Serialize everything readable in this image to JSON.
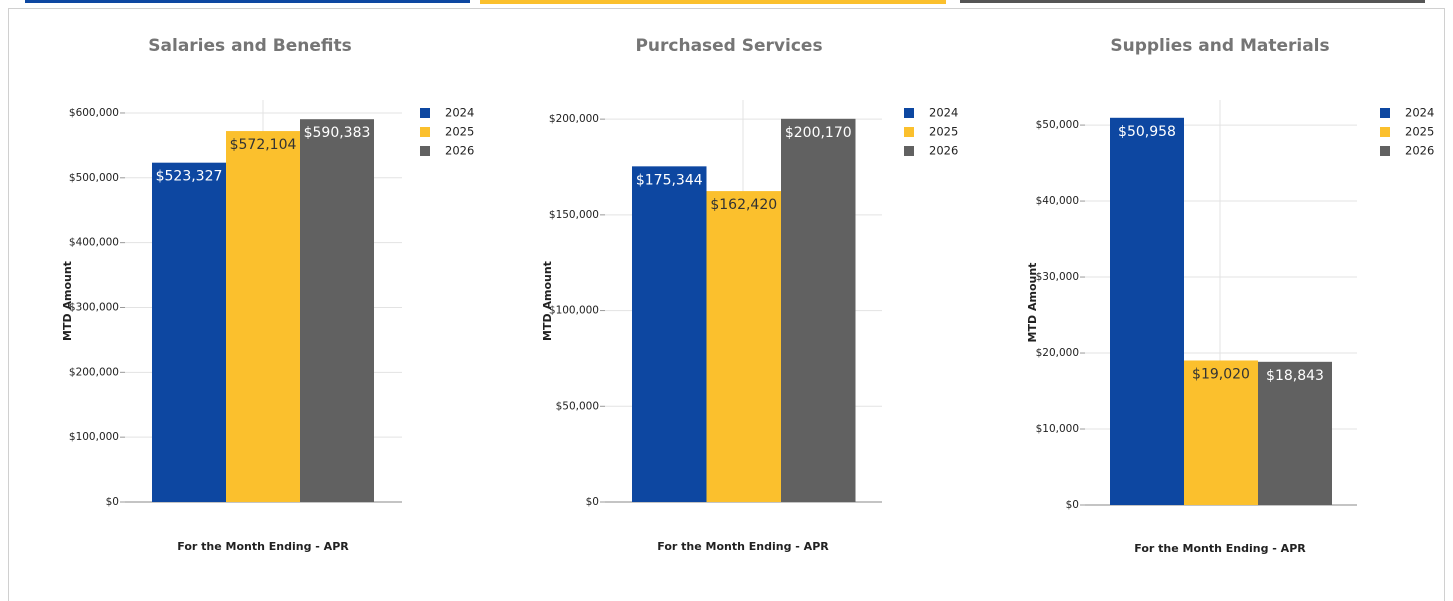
{
  "chart_data": [
    {
      "type": "bar",
      "title": "Salaries and Benefits",
      "y_label": "MTD Amount",
      "x_label": "For the Month Ending - APR",
      "categories": [
        null
      ],
      "series": [
        {
          "name": "2024",
          "color": "#0d47a1",
          "values": [
            523327
          ],
          "value_labels": [
            "$523,327"
          ]
        },
        {
          "name": "2025",
          "color": "#fbc02d",
          "values": [
            572104
          ],
          "value_labels": [
            "$572,104"
          ]
        },
        {
          "name": "2026",
          "color": "#616161",
          "values": [
            590383
          ],
          "value_labels": [
            "$590,383"
          ]
        }
      ],
      "ylim": [
        0,
        620000
      ],
      "yticks": [
        {
          "value": 0,
          "label": "$0"
        },
        {
          "value": 100000,
          "label": "$100,000"
        },
        {
          "value": 200000,
          "label": "$200,000"
        },
        {
          "value": 300000,
          "label": "$300,000"
        },
        {
          "value": 400000,
          "label": "$400,000"
        },
        {
          "value": 500000,
          "label": "$500,000"
        },
        {
          "value": 600000,
          "label": "$600,000"
        }
      ],
      "grid": true,
      "legend": "right"
    },
    {
      "type": "bar",
      "title": "Purchased Services",
      "y_label": "MTD Amount",
      "x_label": "For the Month Ending - APR",
      "categories": [
        null
      ],
      "series": [
        {
          "name": "2024",
          "color": "#0d47a1",
          "values": [
            175344
          ],
          "value_labels": [
            "$175,344"
          ]
        },
        {
          "name": "2025",
          "color": "#fbc02d",
          "values": [
            162420
          ],
          "value_labels": [
            "$162,420"
          ]
        },
        {
          "name": "2026",
          "color": "#616161",
          "values": [
            200170
          ],
          "value_labels": [
            "$200,170"
          ]
        }
      ],
      "ylim": [
        0,
        210000
      ],
      "yticks": [
        {
          "value": 0,
          "label": "$0"
        },
        {
          "value": 50000,
          "label": "$50,000"
        },
        {
          "value": 100000,
          "label": "$100,000"
        },
        {
          "value": 150000,
          "label": "$150,000"
        },
        {
          "value": 200000,
          "label": "$200,000"
        }
      ],
      "grid": true,
      "legend": "right"
    },
    {
      "type": "bar",
      "title": "Supplies and Materials",
      "y_label": "MTD Amount",
      "x_label": "For the Month Ending - APR",
      "categories": [
        null
      ],
      "series": [
        {
          "name": "2024",
          "color": "#0d47a1",
          "values": [
            50958
          ],
          "value_labels": [
            "$50,958"
          ]
        },
        {
          "name": "2025",
          "color": "#fbc02d",
          "values": [
            19020
          ],
          "value_labels": [
            "$19,020"
          ]
        },
        {
          "name": "2026",
          "color": "#616161",
          "values": [
            18843
          ],
          "value_labels": [
            "$18,843"
          ]
        }
      ],
      "ylim": [
        0,
        53300
      ],
      "yticks": [
        {
          "value": 0,
          "label": "$0"
        },
        {
          "value": 10000,
          "label": "$10,000"
        },
        {
          "value": 20000,
          "label": "$20,000"
        },
        {
          "value": 30000,
          "label": "$30,000"
        },
        {
          "value": 40000,
          "label": "$40,000"
        },
        {
          "value": 50000,
          "label": "$50,000"
        }
      ],
      "grid": true,
      "legend": "right"
    }
  ]
}
